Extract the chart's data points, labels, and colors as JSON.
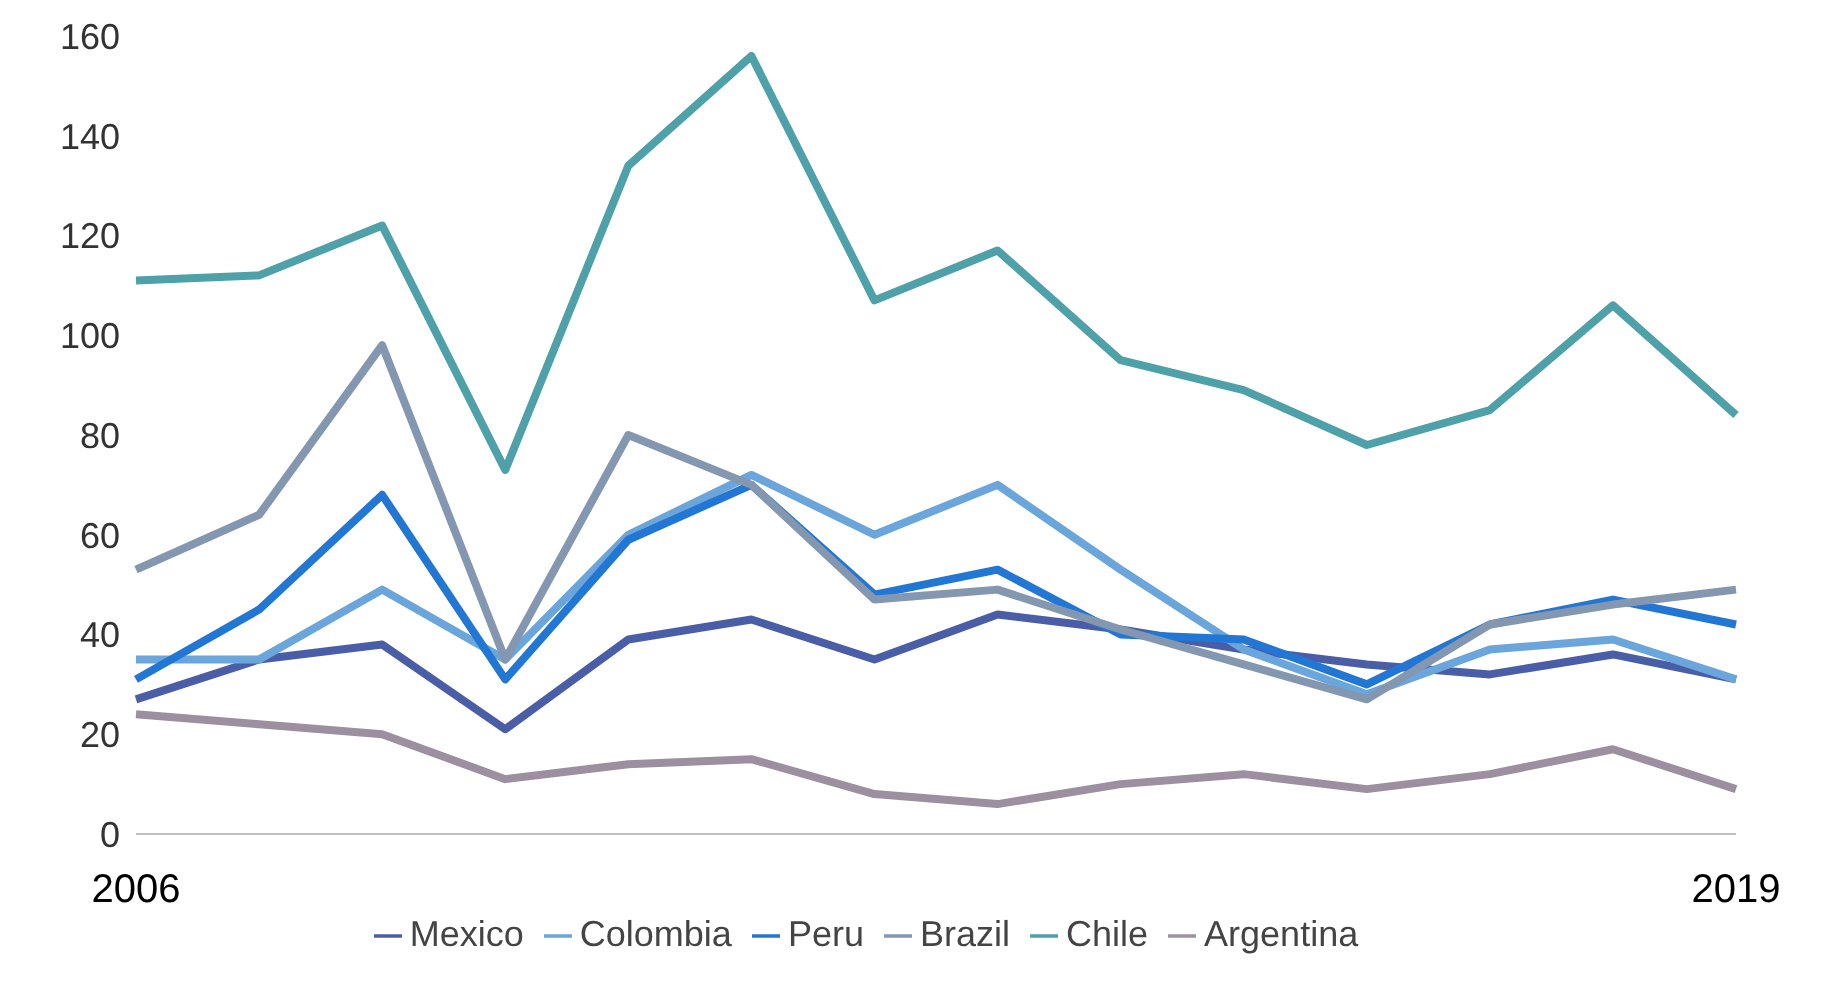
{
  "chart_data": {
    "type": "line",
    "categories": [
      "2006",
      null,
      null,
      null,
      null,
      null,
      null,
      null,
      null,
      null,
      null,
      null,
      null,
      "2019"
    ],
    "series": [
      {
        "name": "Mexico",
        "color": "#4a5ea8",
        "values": [
          27,
          35,
          38,
          21,
          39,
          43,
          35,
          44,
          41,
          37,
          34,
          32,
          36,
          31
        ]
      },
      {
        "name": "Colombia",
        "color": "#6aa5dc",
        "values": [
          35,
          35,
          49,
          35,
          60,
          72,
          60,
          70,
          53,
          37,
          28,
          37,
          39,
          31
        ]
      },
      {
        "name": "Peru",
        "color": "#2277d4",
        "values": [
          31,
          45,
          68,
          31,
          59,
          70,
          48,
          53,
          40,
          39,
          30,
          42,
          47,
          42
        ]
      },
      {
        "name": "Brazil",
        "color": "#8497b0",
        "values": [
          53,
          64,
          98,
          35,
          80,
          70,
          47,
          49,
          41,
          34,
          27,
          42,
          46,
          49
        ]
      },
      {
        "name": "Chile",
        "color": "#4ea1a8",
        "values": [
          111,
          112,
          122,
          73,
          134,
          156,
          107,
          117,
          95,
          89,
          78,
          85,
          106,
          84
        ]
      },
      {
        "name": "Argentina",
        "color": "#9c8fa0",
        "values": [
          24,
          22,
          20,
          11,
          14,
          15,
          8,
          6,
          10,
          12,
          9,
          12,
          17,
          9
        ]
      }
    ],
    "ylim": [
      0,
      160
    ],
    "yticks": [
      0,
      20,
      40,
      60,
      80,
      100,
      120,
      140,
      160
    ],
    "grid": false,
    "legend": "bottom",
    "marker": "none",
    "line_style": "solid"
  }
}
